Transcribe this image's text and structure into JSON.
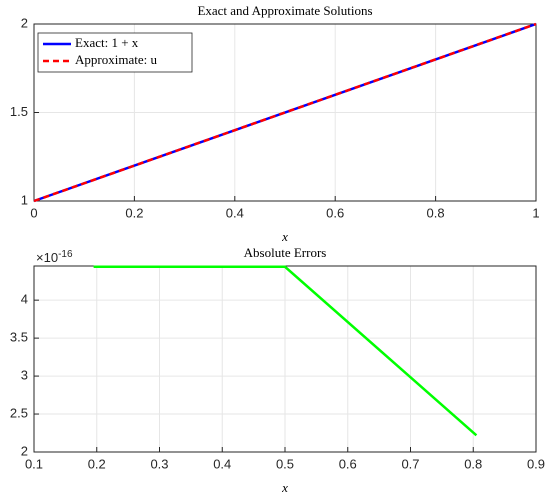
{
  "chart_data": [
    {
      "type": "line",
      "title": "Exact and Approximate Solutions",
      "x_label": "x",
      "x": [
        0,
        1
      ],
      "series": [
        {
          "name": "Exact: 1 + x",
          "color": "#0000ff",
          "dash": "solid",
          "values": [
            1,
            2
          ]
        },
        {
          "name": "Approximate: u",
          "color": "#ff0000",
          "dash": "dashed",
          "values": [
            1,
            2
          ]
        }
      ],
      "xlim": [
        0,
        1
      ],
      "xticks": [
        0,
        0.2,
        0.4,
        0.6,
        0.8,
        1
      ],
      "ylim": [
        1,
        2
      ],
      "yticks": [
        1,
        1.5,
        2
      ],
      "grid": true,
      "legend": "top-left"
    },
    {
      "type": "line",
      "title": "Absolute Errors",
      "x_label": "x",
      "y_scale_base": "×10",
      "y_scale_exponent": "-16",
      "x": [
        0.195,
        0.5,
        0.805
      ],
      "series": [
        {
          "name": "Absolute Error",
          "color": "#00ff00",
          "dash": "solid",
          "values": [
            4.44,
            4.44,
            2.22
          ]
        }
      ],
      "xlim": [
        0.1,
        0.9
      ],
      "xticks": [
        0.1,
        0.2,
        0.3,
        0.4,
        0.5,
        0.6,
        0.7,
        0.8,
        0.9
      ],
      "ylim": [
        2,
        4.45
      ],
      "yticks": [
        2,
        2.5,
        3,
        3.5,
        4
      ],
      "grid": true
    }
  ]
}
